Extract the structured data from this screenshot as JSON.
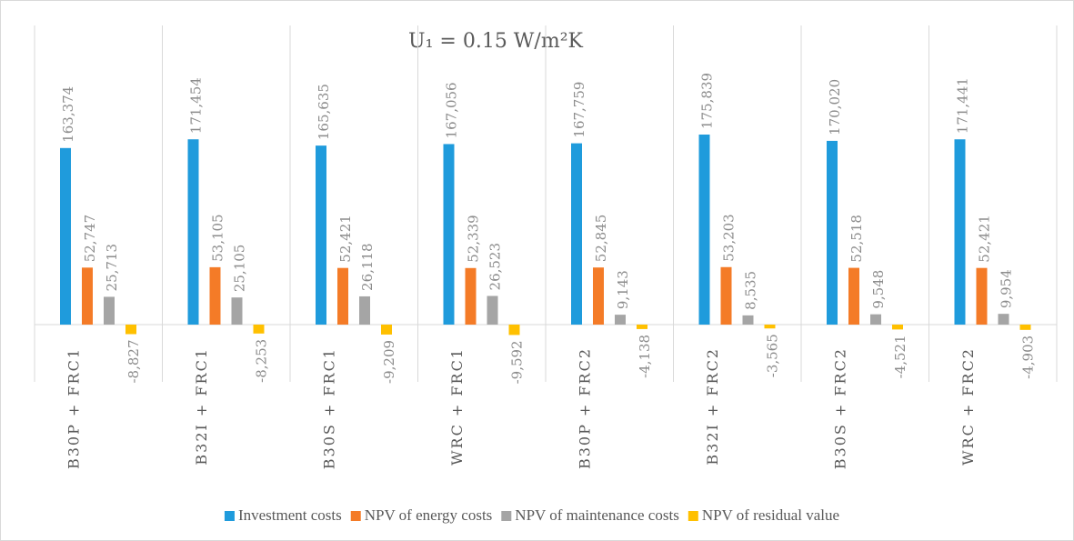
{
  "chart_data": {
    "type": "bar",
    "title": "U₁ = 0.15 W/m²K",
    "categories": [
      "B30P + FRC1",
      "B32I + FRC1",
      "B30S + FRC1",
      "WRC + FRC1",
      "B30P + FRC2",
      "B32I + FRC2",
      "B30S + FRC2",
      "WRC + FRC2"
    ],
    "series": [
      {
        "name": "Investment costs",
        "color": "#1f9bdc",
        "values": [
          163374,
          171454,
          165635,
          167056,
          167759,
          175839,
          170020,
          171441
        ],
        "value_labels": [
          "163,374",
          "171,454",
          "165,635",
          "167,056",
          "167,759",
          "175,839",
          "170,020",
          "171,441"
        ]
      },
      {
        "name": "NPV of energy costs",
        "color": "#f47b27",
        "values": [
          52747,
          53105,
          52421,
          52339,
          52845,
          53203,
          52518,
          52421
        ],
        "value_labels": [
          "52,747",
          "53,105",
          "52,421",
          "52,339",
          "52,845",
          "53,203",
          "52,518",
          "52,421"
        ]
      },
      {
        "name": "NPV of maintenance costs",
        "color": "#a5a5a5",
        "values": [
          25713,
          25105,
          26118,
          26523,
          9143,
          8535,
          9548,
          9954
        ],
        "value_labels": [
          "25,713",
          "25,105",
          "26,118",
          "26,523",
          "9,143",
          "8,535",
          "9,548",
          "9,954"
        ]
      },
      {
        "name": "NPV of residual value",
        "color": "#ffc000",
        "values": [
          -8827,
          -8253,
          -9209,
          -9592,
          -4138,
          -3565,
          -4521,
          -4903
        ],
        "value_labels": [
          "-8,827",
          "-8,253",
          "-9,209",
          "-9,592",
          "-4,138",
          "-3,565",
          "-4,521",
          "-4,903"
        ]
      }
    ]
  }
}
